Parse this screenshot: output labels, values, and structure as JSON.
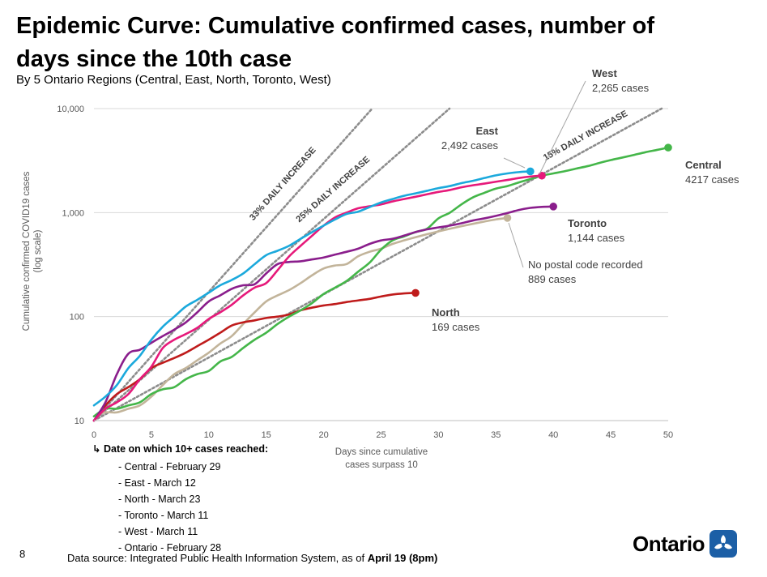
{
  "page": {
    "title": "Epidemic Curve: Cumulative confirmed cases, number of days since the 10th case",
    "subtitle": "By 5 Ontario Regions (Central, East, North, Toronto, West)",
    "page_number": "8",
    "footer_prefix": "Data source:  Integrated Public Health Information System, as of ",
    "footer_date": "April 19 (8pm)",
    "logo_text": "Ontario",
    "notes_arrow": "↳",
    "notes_header": "Date on which 10+ cases reached:",
    "notes": [
      "- Central - February 29",
      "- East - March 12",
      "- North - March 23",
      "- Toronto - March 11",
      "- West - March 11",
      "- Ontario - February 28"
    ]
  },
  "chart_data": {
    "type": "line",
    "title": "Epidemic Curve: Cumulative confirmed cases, number of days since the 10th case",
    "xlabel": [
      "Days since cumulative",
      "cases surpass 10"
    ],
    "ylabel": [
      "Cumulative confirmed COVID19 cases",
      "(log scale)"
    ],
    "y_scale": "log",
    "xlim": [
      0,
      50
    ],
    "ylim": [
      10,
      10000
    ],
    "x_ticks": [
      0,
      5,
      10,
      15,
      20,
      25,
      30,
      35,
      40,
      45,
      50
    ],
    "y_ticks": [
      10,
      100,
      1000,
      10000
    ],
    "y_tick_labels": [
      "10",
      "100",
      "1,000",
      "10,000"
    ],
    "grid": "horizontal",
    "reference_lines": [
      {
        "label": "33% DAILY INCREASE",
        "rate": 0.33,
        "color": "#8c8c8c"
      },
      {
        "label": "25% DAILY INCREASE",
        "rate": 0.25,
        "color": "#8c8c8c"
      },
      {
        "label": "15% DAILY INCREASE",
        "rate": 0.15,
        "color": "#8c8c8c"
      }
    ],
    "series": [
      {
        "name": "West",
        "label": "West",
        "value_label": "2,265 cases",
        "color": "#e6197a",
        "x": [
          0,
          1,
          2,
          3,
          4,
          5,
          6,
          7,
          8,
          9,
          10,
          11,
          12,
          13,
          14,
          15,
          16,
          17,
          18,
          19,
          20,
          21,
          22,
          23,
          24,
          25,
          26,
          27,
          28,
          29,
          30,
          31,
          32,
          33,
          34,
          35,
          36,
          37,
          38,
          39
        ],
        "y": [
          10,
          13,
          15,
          18,
          25,
          33,
          50,
          60,
          68,
          78,
          95,
          110,
          130,
          160,
          190,
          210,
          280,
          380,
          480,
          600,
          750,
          900,
          1000,
          1100,
          1150,
          1200,
          1280,
          1350,
          1420,
          1500,
          1580,
          1650,
          1750,
          1830,
          1900,
          1980,
          2060,
          2150,
          2220,
          2265
        ]
      },
      {
        "name": "East",
        "label": "East",
        "value_label": "2,492 cases",
        "color": "#1ba9dc",
        "x": [
          0,
          1,
          2,
          3,
          4,
          5,
          6,
          7,
          8,
          9,
          10,
          11,
          12,
          13,
          14,
          15,
          16,
          17,
          18,
          19,
          20,
          21,
          22,
          23,
          24,
          25,
          26,
          27,
          28,
          29,
          30,
          31,
          32,
          33,
          34,
          35,
          36,
          37,
          38
        ],
        "y": [
          14,
          17,
          22,
          32,
          42,
          60,
          80,
          100,
          125,
          145,
          170,
          200,
          225,
          260,
          320,
          390,
          430,
          480,
          560,
          650,
          750,
          860,
          970,
          1020,
          1130,
          1250,
          1350,
          1450,
          1530,
          1620,
          1720,
          1800,
          1920,
          2020,
          2150,
          2280,
          2380,
          2450,
          2492
        ]
      },
      {
        "name": "Central",
        "label": "Central",
        "value_label": "4217 cases",
        "color": "#44b649",
        "x": [
          0,
          1,
          2,
          3,
          4,
          5,
          6,
          7,
          8,
          9,
          10,
          11,
          12,
          13,
          14,
          15,
          16,
          17,
          18,
          19,
          20,
          21,
          22,
          23,
          24,
          25,
          26,
          27,
          28,
          29,
          30,
          31,
          32,
          33,
          34,
          35,
          36,
          37,
          38,
          39,
          40,
          41,
          42,
          43,
          44,
          45,
          46,
          47,
          48,
          49,
          50
        ],
        "y": [
          11,
          13,
          13,
          14,
          15,
          18,
          20,
          21,
          25,
          28,
          30,
          37,
          41,
          50,
          60,
          70,
          85,
          100,
          115,
          135,
          165,
          190,
          220,
          270,
          330,
          440,
          540,
          590,
          650,
          700,
          880,
          1000,
          1200,
          1400,
          1550,
          1700,
          1800,
          1950,
          2100,
          2265,
          2380,
          2500,
          2650,
          2800,
          3000,
          3200,
          3380,
          3580,
          3800,
          4000,
          4217
        ]
      },
      {
        "name": "Toronto",
        "label": "Toronto",
        "value_label": "1,144 cases",
        "color": "#8a1e8c",
        "x": [
          0,
          1,
          2,
          3,
          4,
          5,
          6,
          7,
          8,
          9,
          10,
          11,
          12,
          13,
          14,
          15,
          16,
          17,
          18,
          19,
          20,
          21,
          22,
          23,
          24,
          25,
          26,
          27,
          28,
          29,
          30,
          31,
          32,
          33,
          34,
          35,
          36,
          37,
          38,
          39,
          40
        ],
        "y": [
          10,
          15,
          28,
          44,
          48,
          56,
          65,
          75,
          88,
          110,
          140,
          160,
          185,
          200,
          205,
          260,
          320,
          335,
          340,
          355,
          370,
          395,
          420,
          450,
          500,
          540,
          560,
          600,
          650,
          690,
          720,
          750,
          790,
          840,
          880,
          930,
          990,
          1060,
          1110,
          1135,
          1144
        ]
      },
      {
        "name": "No postal code recorded",
        "label": "No postal code recorded",
        "value_label": "889 cases",
        "color": "#c2b49a",
        "x": [
          0,
          1,
          2,
          3,
          4,
          5,
          6,
          7,
          8,
          9,
          10,
          11,
          12,
          13,
          14,
          15,
          16,
          17,
          18,
          19,
          20,
          21,
          22,
          23,
          24,
          25,
          26,
          27,
          28,
          29,
          30,
          31,
          32,
          33,
          34,
          35,
          36
        ],
        "y": [
          11,
          12,
          12,
          13,
          14,
          17,
          22,
          28,
          32,
          38,
          45,
          55,
          65,
          85,
          110,
          140,
          160,
          180,
          210,
          250,
          290,
          310,
          320,
          380,
          420,
          450,
          500,
          540,
          580,
          620,
          660,
          700,
          740,
          780,
          820,
          860,
          889
        ]
      },
      {
        "name": "North",
        "label": "North",
        "value_label": "169 cases",
        "color": "#bf1b1b",
        "x": [
          0,
          1,
          2,
          3,
          4,
          5,
          6,
          7,
          8,
          9,
          10,
          11,
          12,
          13,
          14,
          15,
          16,
          17,
          18,
          19,
          20,
          21,
          22,
          23,
          24,
          25,
          26,
          27,
          28
        ],
        "y": [
          10,
          14,
          18,
          21,
          25,
          32,
          36,
          40,
          45,
          52,
          60,
          70,
          82,
          88,
          92,
          97,
          100,
          105,
          115,
          122,
          128,
          132,
          138,
          143,
          148,
          156,
          163,
          167,
          169
        ]
      }
    ]
  }
}
